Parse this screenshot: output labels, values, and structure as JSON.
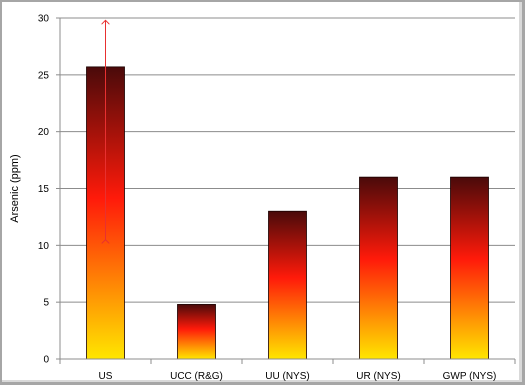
{
  "chart_data": {
    "type": "bar",
    "categories": [
      "US",
      "UCC (R&G)",
      "UU (NYS)",
      "UR (NYS)",
      "GWP (NYS)"
    ],
    "values": [
      25.7,
      4.8,
      13.0,
      16.0,
      16.0
    ],
    "ylabel": "Arsenic (ppm)",
    "xlabel": "",
    "ylim": [
      0,
      30
    ],
    "yticks": [
      0,
      5,
      10,
      15,
      20,
      25,
      30
    ],
    "grid": true,
    "legend": "none",
    "bar_gradient": {
      "top": "#4a0a0a",
      "middle": "#ff1a0a",
      "bottom": "#ffe600"
    },
    "error_range": {
      "category": "US",
      "low": 10.5,
      "high": 29.8,
      "color": "#e83030"
    }
  }
}
